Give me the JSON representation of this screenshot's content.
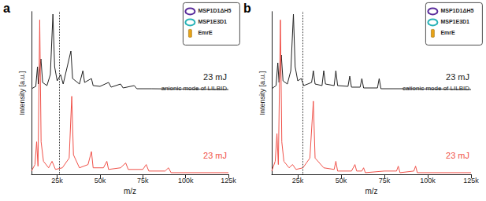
{
  "chart_data": [
    {
      "type": "line",
      "panel_label": "a",
      "annotation": "anionic mode of LILBID",
      "xlabel": "m/z",
      "ylabel": "Intensity [a.u.]",
      "xlim": [
        10000,
        125000
      ],
      "xticks": [
        {
          "value": 25000,
          "label": "25k"
        },
        {
          "value": 50000,
          "label": "50k"
        },
        {
          "value": 75000,
          "label": "75k"
        },
        {
          "value": 100000,
          "label": "100k"
        },
        {
          "value": 125000,
          "label": "125k"
        }
      ],
      "ylim": [
        0,
        100
      ],
      "yticks": [],
      "tick_labels": "x",
      "grid": false,
      "dashed_line_x": 26000,
      "key_items": [
        {
          "label": "MSP1D1ΔH5",
          "color": "#5a2d9c",
          "marker": "ring"
        },
        {
          "label": "MSP1E3D1",
          "color": "#2ab3b8",
          "marker": "ring"
        },
        {
          "label": "EmrE",
          "color": "#e8a317",
          "marker": "cylinder"
        }
      ],
      "series": [
        {
          "name": "23 mJ",
          "color": "#222222",
          "x": [
            10000,
            12500,
            13500,
            14000,
            15500,
            16500,
            19000,
            21000,
            22500,
            23500,
            25000,
            27000,
            28500,
            33000,
            34000,
            38000,
            40000,
            41000,
            45000,
            46000,
            50000,
            55000,
            56500,
            62000,
            63500,
            70000,
            71500,
            80000,
            125000
          ],
          "values": [
            2,
            5,
            30,
            8,
            40,
            10,
            6,
            20,
            97,
            30,
            12,
            20,
            8,
            50,
            15,
            8,
            25,
            10,
            15,
            6,
            5,
            10,
            4,
            8,
            3,
            6,
            2,
            2,
            1
          ]
        },
        {
          "name": "23 mJ",
          "color": "#f0524a",
          "x": [
            10000,
            12000,
            13000,
            13800,
            14800,
            15600,
            17000,
            20000,
            22000,
            24000,
            28000,
            32000,
            33500,
            34500,
            38000,
            43000,
            45000,
            46000,
            52000,
            54000,
            55000,
            62000,
            65000,
            66500,
            75000,
            77000,
            78500,
            88000,
            90000,
            91500,
            125000
          ],
          "values": [
            2,
            6,
            20,
            5,
            95,
            20,
            8,
            4,
            8,
            3,
            4,
            10,
            48,
            12,
            4,
            6,
            14,
            4,
            4,
            8,
            3,
            4,
            7,
            3,
            3,
            6,
            2,
            2,
            4,
            1,
            1
          ]
        }
      ]
    },
    {
      "type": "line",
      "panel_label": "b",
      "annotation": "cationic mode of LILBID",
      "xlabel": "m/z",
      "ylabel": "Intensity [a.u.]",
      "xlim": [
        10000,
        125000
      ],
      "xticks": [
        {
          "value": 25000,
          "label": "25k"
        },
        {
          "value": 50000,
          "label": "50k"
        },
        {
          "value": 75000,
          "label": "75k"
        },
        {
          "value": 100000,
          "label": "100k"
        },
        {
          "value": 125000,
          "label": "125k"
        }
      ],
      "ylim": [
        0,
        100
      ],
      "yticks": [],
      "tick_labels": "x",
      "grid": false,
      "dashed_line_x": 28000,
      "key_items": [
        {
          "label": "MSP1D1ΔH5",
          "color": "#5a2d9c",
          "marker": "ring"
        },
        {
          "label": "MSP1E3D1",
          "color": "#2ab3b8",
          "marker": "ring"
        },
        {
          "label": "EmrE",
          "color": "#e8a317",
          "marker": "cylinder"
        }
      ],
      "series": [
        {
          "name": "23 mJ",
          "color": "#222222",
          "x": [
            10000,
            12500,
            13500,
            14200,
            15500,
            16500,
            19000,
            21000,
            22500,
            23500,
            25000,
            27000,
            28500,
            33000,
            34000,
            35000,
            39000,
            40000,
            41000,
            46000,
            47000,
            48000,
            54000,
            55000,
            56000,
            61000,
            62000,
            63000,
            71000,
            72000,
            73000,
            85000,
            125000
          ],
          "values": [
            2,
            6,
            35,
            10,
            45,
            12,
            8,
            25,
            97,
            30,
            12,
            15,
            6,
            10,
            25,
            8,
            6,
            25,
            8,
            6,
            25,
            6,
            5,
            18,
            4,
            4,
            15,
            3,
            3,
            15,
            2,
            2,
            1
          ]
        },
        {
          "name": "23 mJ",
          "color": "#f0524a",
          "x": [
            10000,
            12000,
            13000,
            13800,
            15000,
            15800,
            17000,
            20000,
            22000,
            24000,
            28000,
            32000,
            34000,
            35000,
            40000,
            46000,
            47000,
            48000,
            56000,
            58000,
            59000,
            62000,
            63000,
            64000,
            75000,
            82000,
            83000,
            84000,
            92000,
            93000,
            94000,
            125000
          ],
          "values": [
            2,
            8,
            25,
            6,
            95,
            20,
            8,
            4,
            6,
            3,
            4,
            10,
            45,
            10,
            4,
            3,
            8,
            2,
            2,
            6,
            2,
            2,
            4,
            1,
            2,
            2,
            5,
            1,
            2,
            5,
            1,
            1
          ]
        }
      ]
    }
  ]
}
